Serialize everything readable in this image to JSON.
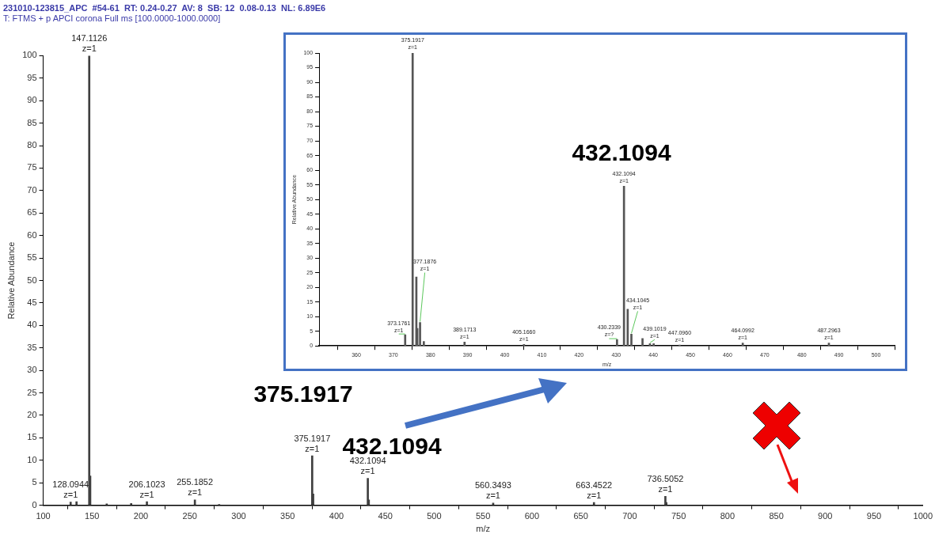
{
  "chart_data": [
    {
      "type": "bar",
      "title": "231010-123815_APC  #54-61  RT: 0.24-0.27  AV: 8  SB: 12  0.08-0.13  NL: 6.89E6",
      "subtitle": "T: FTMS + p APCI corona Full ms [100.0000-1000.0000]",
      "xlabel": "m/z",
      "ylabel": "Relative Abundance",
      "series": [
        {
          "color": "#404040",
          "x": [
            128.0944,
            134.1,
            147.1126,
            148.1,
            165,
            190,
            206.1023,
            255.1852,
            280,
            375.1917,
            376.2,
            432.1094,
            433.1,
            560.3493,
            663.4522,
            736.5052,
            737.5
          ],
          "values": [
            0.7,
            0.8,
            100,
            6.5,
            0.3,
            0.4,
            0.8,
            1.2,
            0.2,
            11,
            2.5,
            6,
            1.2,
            0.5,
            0.6,
            2,
            0.6
          ]
        }
      ],
      "xlim": [
        100,
        1000
      ],
      "xticks": [
        100,
        150,
        200,
        250,
        300,
        350,
        400,
        450,
        500,
        550,
        600,
        650,
        700,
        750,
        800,
        850,
        900,
        950,
        1000
      ],
      "ylim": [
        0,
        100
      ],
      "yticks": [
        0,
        5,
        10,
        15,
        20,
        25,
        30,
        35,
        40,
        45,
        50,
        55,
        60,
        65,
        70,
        75,
        80,
        85,
        90,
        95,
        100
      ],
      "annotations": [
        {
          "text": "147.1126\nz=1",
          "x": 147.1126,
          "y": 100
        },
        {
          "text": "128.0944\nz=1",
          "x": 128.0944,
          "y": 0.7
        },
        {
          "text": "206.1023\nz=1",
          "x": 206.1023,
          "y": 0.8
        },
        {
          "text": "255.1852\nz=1",
          "x": 255.1852,
          "y": 1.2
        },
        {
          "text": "375.1917\nz=1",
          "x": 375.1917,
          "y": 11
        },
        {
          "text": "432.1094\nz=1",
          "x": 432.1094,
          "y": 6
        },
        {
          "text": "560.3493\nz=1",
          "x": 560.3493,
          "y": 0.5
        },
        {
          "text": "663.4522\nz=1",
          "x": 663.4522,
          "y": 0.6
        },
        {
          "text": "736.5052\nz=1",
          "x": 736.5052,
          "y": 2
        },
        "375.1917",
        "432.1094"
      ],
      "grid": false,
      "legend": false
    },
    {
      "type": "bar",
      "xlabel": "m/z",
      "ylabel": "Relative Abundance",
      "series": [
        {
          "color": "#555555",
          "x": [
            373.1761,
            375.1917,
            376.19,
            376.45,
            377.1876,
            378.2,
            389.1713,
            405.166,
            430.2339,
            432.1094,
            433.11,
            434.1045,
            437.1,
            439.1019,
            440.1,
            447.096,
            464.0992,
            487.2963
          ],
          "values": [
            3.8,
            100,
            23.5,
            6,
            8,
            1.5,
            1.3,
            0.5,
            2.2,
            54.5,
            12.5,
            4,
            2.5,
            0.8,
            0.8,
            0.3,
            1,
            1
          ]
        }
      ],
      "xlim": [
        350,
        505
      ],
      "xticks": [
        360,
        370,
        380,
        390,
        400,
        410,
        420,
        430,
        440,
        450,
        460,
        470,
        480,
        490,
        500
      ],
      "ylim": [
        0,
        100
      ],
      "yticks": [
        0,
        5,
        10,
        15,
        20,
        25,
        30,
        35,
        40,
        45,
        50,
        55,
        60,
        65,
        70,
        75,
        80,
        85,
        90,
        95,
        100
      ],
      "annotations": [
        {
          "text": "375.1917\nz=1",
          "x": 375.1917,
          "y": 100
        },
        {
          "text": "377.1876\nz=1",
          "x": 377.1876,
          "y": 8
        },
        {
          "text": "373.1761\nz=1",
          "x": 373.1761,
          "y": 3.8
        },
        {
          "text": "389.1713\nz=1",
          "x": 389.1713,
          "y": 1.3
        },
        {
          "text": "405.1660\nz=1",
          "x": 405.166,
          "y": 0.5
        },
        {
          "text": "430.2339\nz=?",
          "x": 430.2339,
          "y": 2.2
        },
        {
          "text": "432.1094\nz=1",
          "x": 432.1094,
          "y": 54.5
        },
        {
          "text": "434.1045\nz=1",
          "x": 434.1045,
          "y": 4
        },
        {
          "text": "439.1019\nz=1",
          "x": 439.1019,
          "y": 0.8
        },
        {
          "text": "447.0960\nz=1",
          "x": 447.096,
          "y": 0.3
        },
        {
          "text": "464.0992\nz=1",
          "x": 464.0992,
          "y": 1
        },
        {
          "text": "487.2963\nz=1",
          "x": 487.2963,
          "y": 1
        },
        "432.1094"
      ],
      "grid": false,
      "legend": false
    }
  ]
}
